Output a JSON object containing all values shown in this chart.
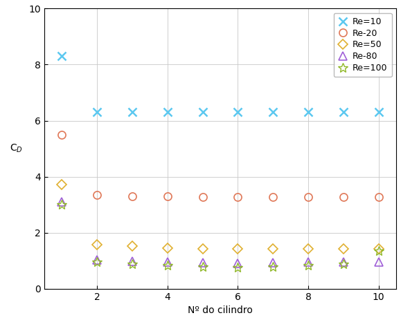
{
  "series": [
    {
      "label": "Re=10",
      "color": "#5bc8f0",
      "marker": "x",
      "markersize": 8,
      "markeredgewidth": 1.8,
      "values": [
        8.3,
        6.32,
        6.32,
        6.32,
        6.32,
        6.32,
        6.32,
        6.32,
        6.32,
        6.32
      ],
      "hollow": false
    },
    {
      "label": "Re-20",
      "color": "#e07858",
      "marker": "o",
      "markersize": 8,
      "markeredgewidth": 1.2,
      "values": [
        5.5,
        3.35,
        3.3,
        3.3,
        3.28,
        3.28,
        3.28,
        3.28,
        3.28,
        3.28
      ],
      "hollow": true
    },
    {
      "label": "Re=50",
      "color": "#e0b030",
      "marker": "D",
      "markersize": 7,
      "markeredgewidth": 1.2,
      "values": [
        3.72,
        1.58,
        1.52,
        1.45,
        1.42,
        1.42,
        1.42,
        1.42,
        1.42,
        1.42
      ],
      "hollow": true
    },
    {
      "label": "Re-80",
      "color": "#a060d8",
      "marker": "^",
      "markersize": 8,
      "markeredgewidth": 1.2,
      "values": [
        3.1,
        1.02,
        0.98,
        0.95,
        0.92,
        0.9,
        0.92,
        0.95,
        0.95,
        0.95
      ],
      "hollow": true
    },
    {
      "label": "Re=100",
      "color": "#90b828",
      "marker": "*",
      "markersize": 10,
      "markeredgewidth": 1.0,
      "values": [
        3.0,
        0.95,
        0.88,
        0.82,
        0.78,
        0.76,
        0.78,
        0.82,
        0.88,
        1.35
      ],
      "hollow": true
    }
  ],
  "x_values": [
    1,
    2,
    3,
    4,
    5,
    6,
    7,
    8,
    9,
    10
  ],
  "xlabel": "Nº do cilindro",
  "ylabel": "Cₚ",
  "xlim": [
    0.5,
    10.5
  ],
  "ylim": [
    0,
    10
  ],
  "xticks": [
    2,
    4,
    6,
    8,
    10
  ],
  "yticks": [
    0,
    2,
    4,
    6,
    8,
    10
  ],
  "legend_loc": "upper right",
  "grid": true,
  "background_color": "#ffffff"
}
